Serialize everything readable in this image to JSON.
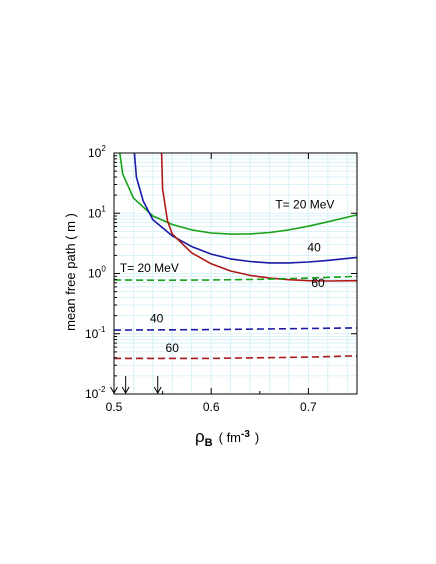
{
  "chart_data": {
    "type": "line",
    "xlabel": "ρ",
    "xlabel_sub": "B",
    "xlabel_unit_open": "( fm",
    "xlabel_unit_exp": "-3",
    "xlabel_unit_close": ")",
    "ylabel": "mean free path ( m )",
    "y_scale": "log",
    "xlim": [
      0.5,
      0.75
    ],
    "ylim": [
      0.01,
      100
    ],
    "grid": true,
    "grid_color": "#cfeff6",
    "x_ticks": [
      0.5,
      0.6,
      0.7
    ],
    "x_tick_labels": [
      "0.5",
      "0.6",
      "0.7"
    ],
    "y_ticks": [
      {
        "base": "10",
        "exp": "-2",
        "value": 0.01
      },
      {
        "base": "10",
        "exp": "-1",
        "value": 0.1
      },
      {
        "base": "10",
        "exp": "0",
        "value": 1
      },
      {
        "base": "10",
        "exp": "1",
        "value": 10
      },
      {
        "base": "10",
        "exp": "2",
        "value": 100
      }
    ],
    "series": [
      {
        "key": "g_solid",
        "color": "#18a318",
        "dash": "none",
        "points": [
          [
            0.506,
            100
          ],
          [
            0.509,
            45
          ],
          [
            0.52,
            18
          ],
          [
            0.54,
            9
          ],
          [
            0.56,
            6.5
          ],
          [
            0.58,
            5.3
          ],
          [
            0.6,
            4.7
          ],
          [
            0.62,
            4.5
          ],
          [
            0.64,
            4.55
          ],
          [
            0.66,
            4.8
          ],
          [
            0.68,
            5.3
          ],
          [
            0.7,
            6.1
          ],
          [
            0.72,
            7.2
          ],
          [
            0.75,
            9.4
          ]
        ]
      },
      {
        "key": "b_solid",
        "color": "#1a1aa8",
        "dash": "none",
        "points": [
          [
            0.521,
            100
          ],
          [
            0.523,
            40
          ],
          [
            0.53,
            16
          ],
          [
            0.54,
            7.8
          ],
          [
            0.56,
            4.2
          ],
          [
            0.58,
            2.8
          ],
          [
            0.6,
            2.1
          ],
          [
            0.62,
            1.75
          ],
          [
            0.64,
            1.58
          ],
          [
            0.66,
            1.5
          ],
          [
            0.68,
            1.5
          ],
          [
            0.7,
            1.55
          ],
          [
            0.72,
            1.65
          ],
          [
            0.75,
            1.85
          ]
        ]
      },
      {
        "key": "r_solid",
        "color": "#b01818",
        "dash": "none",
        "points": [
          [
            0.549,
            100
          ],
          [
            0.55,
            25
          ],
          [
            0.555,
            7.5
          ],
          [
            0.56,
            4.5
          ],
          [
            0.58,
            2.2
          ],
          [
            0.6,
            1.45
          ],
          [
            0.62,
            1.1
          ],
          [
            0.64,
            0.93
          ],
          [
            0.66,
            0.84
          ],
          [
            0.68,
            0.79
          ],
          [
            0.7,
            0.76
          ],
          [
            0.72,
            0.75
          ],
          [
            0.75,
            0.76
          ]
        ]
      },
      {
        "key": "g_dash",
        "color": "#18a318",
        "dash": "7,4",
        "points": [
          [
            0.5,
            0.78
          ],
          [
            0.55,
            0.77
          ],
          [
            0.6,
            0.78
          ],
          [
            0.65,
            0.8
          ],
          [
            0.7,
            0.84
          ],
          [
            0.75,
            0.9
          ]
        ]
      },
      {
        "key": "b_dash",
        "color": "#1a1aa8",
        "dash": "7,4",
        "points": [
          [
            0.5,
            0.115
          ],
          [
            0.6,
            0.117
          ],
          [
            0.7,
            0.122
          ],
          [
            0.75,
            0.125
          ]
        ]
      },
      {
        "key": "r_dash",
        "color": "#b01818",
        "dash": "7,4",
        "points": [
          [
            0.5,
            0.039
          ],
          [
            0.6,
            0.039
          ],
          [
            0.7,
            0.041
          ],
          [
            0.75,
            0.043
          ]
        ]
      }
    ],
    "annotations": [
      {
        "text": "T= 20 MeV",
        "x": 0.666,
        "y": 12
      },
      {
        "text": "40",
        "x": 0.699,
        "y": 2.3
      },
      {
        "text": "60",
        "x": 0.703,
        "y": 0.6
      },
      {
        "text": "T= 20 MeV",
        "x": 0.506,
        "y": 1.05
      },
      {
        "text": "40",
        "x": 0.537,
        "y": 0.155
      },
      {
        "text": "60",
        "x": 0.553,
        "y": 0.05
      }
    ],
    "arrows_x": [
      0.5,
      0.512,
      0.545
    ]
  }
}
